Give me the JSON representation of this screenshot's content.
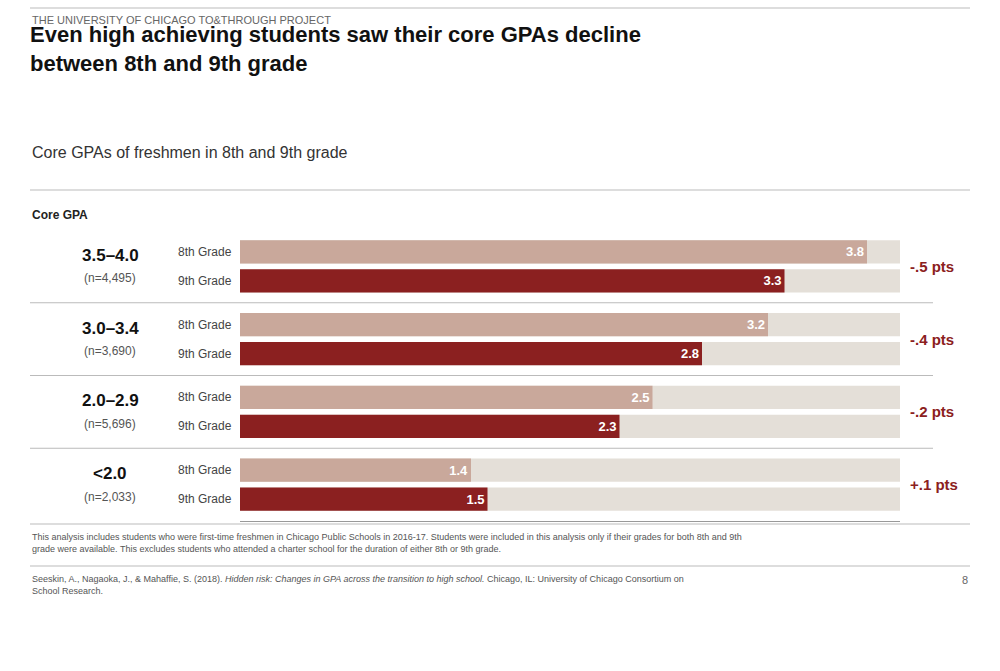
{
  "chart_data": {
    "type": "bar",
    "orientation": "horizontal",
    "header": "THE UNIVERSITY OF CHICAGO TO&THROUGH PROJECT",
    "title": "Even high achieving students saw their core GPAs decline\nbetween 8th and 9th grade",
    "subtitle": "Core GPAs of freshmen in 8th and 9th grade",
    "ylabel": "Core GPA",
    "categories": [
      "3.5–4.0",
      "3.0–3.4",
      "2.0–2.9",
      "<2.0"
    ],
    "sample_sizes": [
      "(n=4,495)",
      "(n=3,690)",
      "(n=5,696)",
      "(n=2,033)"
    ],
    "series": [
      {
        "name": "8th Grade",
        "color": "#c9a89b",
        "values": [
          3.8,
          3.2,
          2.5,
          1.4
        ]
      },
      {
        "name": "9th Grade",
        "color": "#8b2020",
        "values": [
          3.3,
          2.8,
          2.3,
          1.5
        ]
      }
    ],
    "differences": [
      {
        "text": "-.5 pts",
        "color": "#8b2020"
      },
      {
        "text": "-.4 pts",
        "color": "#8b2020"
      },
      {
        "text": "-.2 pts",
        "color": "#8b2020"
      },
      {
        "text": "+.1 pts",
        "color": "#8b2020"
      }
    ],
    "xlim": [
      0,
      4.0
    ],
    "data_labels": true,
    "tick_labels": false,
    "grid": false,
    "footnote": "This analysis includes students who were first-time freshmen in Chicago Public Schools in 2016-17. Students were included in this analysis only if their grades for both 8th and 9th\ngrade were available. This excludes students who attended a charter school for the duration of either 8th or 9th grade.",
    "citation": [
      {
        "text": "Seeskin, A., Nagaoka, J., & Mahaffie, S. (2018). ",
        "italic": false
      },
      {
        "text": "Hidden risk: Changes in GPA across the transition to high school.",
        "italic": true
      },
      {
        "text": " Chicago, IL: University of Chicago Consortium on\nSchool Research.",
        "italic": false
      }
    ],
    "page_number": "8"
  }
}
